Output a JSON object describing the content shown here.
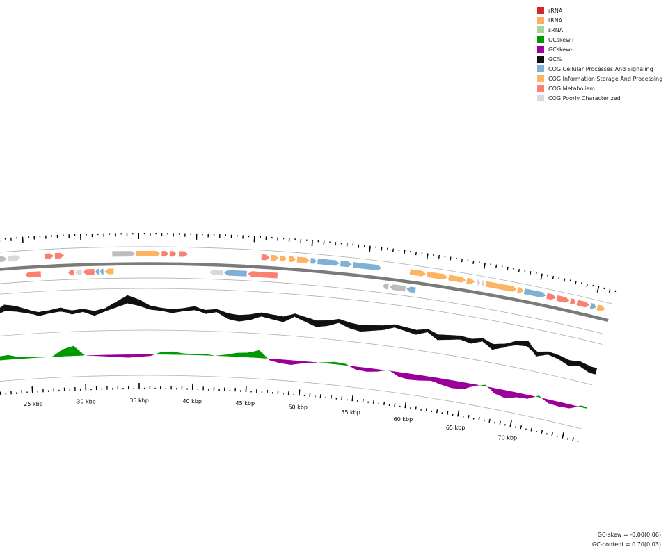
{
  "legend": [
    {
      "label": "rRNA",
      "color": "#d62728"
    },
    {
      "label": "tRNA",
      "color": "#fdae6b"
    },
    {
      "label": "sRNA",
      "color": "#a1d99b"
    },
    {
      "label": "GCskew+",
      "color": "#009900"
    },
    {
      "label": "GCskew-",
      "color": "#990099"
    },
    {
      "label": "GC%",
      "color": "#111111"
    },
    {
      "label": "COG Cellular Processes And Signaling",
      "color": "#80b1d3"
    },
    {
      "label": "COG Information Storage And Processing",
      "color": "#fdb462"
    },
    {
      "label": "COG Metabolism",
      "color": "#fb8072"
    },
    {
      "label": "COG Poorly Characterized",
      "color": "#d9d9d9"
    }
  ],
  "colors": {
    "backbone": "#7a7a7a",
    "track_line": "#b0b0b0",
    "tick": "#000000",
    "unknown": "#bdbdbd"
  },
  "scale": {
    "unit": "kbp",
    "labels": [
      "25 kbp",
      "30 kbp",
      "35 kbp",
      "40 kbp",
      "45 kbp",
      "50 kbp",
      "55 kbp",
      "60 kbp",
      "65 kbp",
      "70 kbp"
    ],
    "positions_kbp": [
      25,
      30,
      35,
      40,
      45,
      50,
      55,
      60,
      65,
      70
    ]
  },
  "chart_data": {
    "type": "circular-genome-map",
    "visible_range_kbp": [
      22,
      76
    ],
    "forward_genes": [
      {
        "start": 21.6,
        "end": 22.0,
        "cat": "COG Cellular Processes And Signaling"
      },
      {
        "start": 22.1,
        "end": 22.4,
        "cat": "COG Cellular Processes And Signaling"
      },
      {
        "start": 22.5,
        "end": 23.5,
        "cat": "unknown"
      },
      {
        "start": 23.6,
        "end": 24.7,
        "cat": "COG Poorly Characterized"
      },
      {
        "start": 26.8,
        "end": 27.6,
        "cat": "COG Metabolism"
      },
      {
        "start": 27.7,
        "end": 28.5,
        "cat": "COG Metabolism"
      },
      {
        "start": 32.7,
        "end": 34.7,
        "cat": "unknown"
      },
      {
        "start": 34.8,
        "end": 36.9,
        "cat": "COG Information Storage And Processing"
      },
      {
        "start": 37.0,
        "end": 37.6,
        "cat": "COG Metabolism"
      },
      {
        "start": 37.7,
        "end": 38.3,
        "cat": "COG Metabolism"
      },
      {
        "start": 38.5,
        "end": 39.3,
        "cat": "COG Metabolism"
      },
      {
        "start": 45.7,
        "end": 46.4,
        "cat": "COG Metabolism"
      },
      {
        "start": 46.5,
        "end": 47.2,
        "cat": "COG Information Storage And Processing"
      },
      {
        "start": 47.3,
        "end": 47.9,
        "cat": "COG Information Storage And Processing"
      },
      {
        "start": 48.1,
        "end": 48.7,
        "cat": "COG Information Storage And Processing"
      },
      {
        "start": 48.8,
        "end": 49.9,
        "cat": "COG Information Storage And Processing"
      },
      {
        "start": 50.0,
        "end": 50.5,
        "cat": "COG Cellular Processes And Signaling"
      },
      {
        "start": 50.6,
        "end": 52.5,
        "cat": "COG Cellular Processes And Signaling"
      },
      {
        "start": 52.6,
        "end": 53.6,
        "cat": "COG Cellular Processes And Signaling"
      },
      {
        "start": 53.7,
        "end": 56.2,
        "cat": "COG Cellular Processes And Signaling"
      },
      {
        "start": 58.7,
        "end": 60.1,
        "cat": "COG Information Storage And Processing"
      },
      {
        "start": 60.2,
        "end": 62.0,
        "cat": "COG Information Storage And Processing"
      },
      {
        "start": 62.1,
        "end": 63.6,
        "cat": "COG Information Storage And Processing"
      },
      {
        "start": 63.7,
        "end": 64.4,
        "cat": "COG Information Storage And Processing"
      },
      {
        "start": 64.6,
        "end": 64.9,
        "cat": "COG Poorly Characterized"
      },
      {
        "start": 65.0,
        "end": 65.3,
        "cat": "COG Poorly Characterized"
      },
      {
        "start": 65.4,
        "end": 68.1,
        "cat": "COG Information Storage And Processing"
      },
      {
        "start": 68.2,
        "end": 68.7,
        "cat": "COG Information Storage And Processing"
      },
      {
        "start": 68.8,
        "end": 70.7,
        "cat": "COG Cellular Processes And Signaling"
      },
      {
        "start": 70.8,
        "end": 71.6,
        "cat": "COG Metabolism"
      },
      {
        "start": 71.7,
        "end": 72.8,
        "cat": "COG Metabolism"
      },
      {
        "start": 72.9,
        "end": 73.4,
        "cat": "COG Metabolism"
      },
      {
        "start": 73.5,
        "end": 74.6,
        "cat": "COG Metabolism"
      },
      {
        "start": 74.7,
        "end": 75.2,
        "cat": "COG Cellular Processes And Signaling"
      },
      {
        "start": 75.3,
        "end": 76.0,
        "cat": "COG Information Storage And Processing"
      }
    ],
    "reverse_genes": [
      {
        "start": 25.0,
        "end": 26.4,
        "cat": "COG Metabolism"
      },
      {
        "start": 28.8,
        "end": 29.3,
        "cat": "COG Metabolism"
      },
      {
        "start": 29.4,
        "end": 30.0,
        "cat": "COG Poorly Characterized"
      },
      {
        "start": 30.1,
        "end": 31.1,
        "cat": "COG Metabolism"
      },
      {
        "start": 31.2,
        "end": 31.5,
        "cat": "COG Cellular Processes And Signaling"
      },
      {
        "start": 31.6,
        "end": 31.9,
        "cat": "COG Cellular Processes And Signaling"
      },
      {
        "start": 32.0,
        "end": 32.8,
        "cat": "COG Information Storage And Processing"
      },
      {
        "start": 41.2,
        "end": 42.4,
        "cat": "COG Poorly Characterized"
      },
      {
        "start": 42.5,
        "end": 44.5,
        "cat": "COG Cellular Processes And Signaling"
      },
      {
        "start": 44.6,
        "end": 47.2,
        "cat": "COG Metabolism"
      },
      {
        "start": 56.5,
        "end": 57.0,
        "cat": "unknown"
      },
      {
        "start": 57.1,
        "end": 58.5,
        "cat": "unknown"
      },
      {
        "start": 58.6,
        "end": 59.4,
        "cat": "COG Cellular Processes And Signaling"
      }
    ],
    "gc_content_kbp": [
      22,
      23,
      24,
      25,
      26,
      27,
      28,
      29,
      30,
      31,
      32,
      33,
      34,
      35,
      36,
      37,
      38,
      39,
      40,
      41,
      42,
      43,
      44,
      45,
      46,
      47,
      48,
      49,
      50,
      51,
      52,
      53,
      54,
      55,
      56,
      57,
      58,
      59,
      60,
      61,
      62,
      63,
      64,
      65,
      66,
      67,
      68,
      69,
      70,
      71,
      72,
      73,
      74,
      75,
      76
    ],
    "gc_content_values": [
      0.71,
      0.74,
      0.73,
      0.71,
      0.69,
      0.7,
      0.71,
      0.69,
      0.7,
      0.68,
      0.7,
      0.73,
      0.76,
      0.74,
      0.71,
      0.7,
      0.69,
      0.7,
      0.71,
      0.69,
      0.7,
      0.67,
      0.66,
      0.67,
      0.69,
      0.68,
      0.67,
      0.7,
      0.68,
      0.66,
      0.67,
      0.69,
      0.67,
      0.66,
      0.67,
      0.68,
      0.7,
      0.69,
      0.68,
      0.7,
      0.67,
      0.68,
      0.69,
      0.68,
      0.7,
      0.67,
      0.69,
      0.72,
      0.73,
      0.68,
      0.7,
      0.69,
      0.67,
      0.68,
      0.66
    ],
    "gc_skew_kbp": [
      22,
      23,
      24,
      25,
      26,
      27,
      28,
      29,
      30,
      31,
      32,
      33,
      34,
      35,
      36,
      37,
      38,
      39,
      40,
      41,
      42,
      43,
      44,
      45,
      46,
      47,
      48,
      49,
      50,
      51,
      52,
      53,
      54,
      55,
      56,
      57,
      58,
      59,
      60,
      61,
      62,
      63,
      64,
      65,
      66,
      67,
      68,
      69,
      70,
      71,
      72,
      73,
      74,
      75,
      76
    ],
    "gc_skew_values": [
      0.05,
      0.06,
      0.02,
      0.02,
      0.01,
      0.0,
      0.09,
      0.13,
      0.0,
      -0.01,
      -0.02,
      -0.03,
      -0.04,
      -0.03,
      -0.02,
      0.03,
      0.04,
      0.02,
      0.01,
      0.02,
      0.0,
      0.02,
      0.05,
      0.06,
      0.1,
      -0.02,
      -0.05,
      -0.06,
      -0.03,
      -0.01,
      0.01,
      0.03,
      0.02,
      -0.04,
      -0.05,
      -0.03,
      0.01,
      -0.06,
      -0.08,
      -0.07,
      -0.05,
      -0.08,
      -0.1,
      -0.09,
      -0.02,
      0.02,
      -0.07,
      -0.1,
      -0.06,
      -0.05,
      0.02,
      -0.05,
      -0.06,
      -0.05,
      0.02
    ]
  },
  "stats": {
    "gc_skew": "GC-skew = -0.00(0.06)",
    "gc_content": "GC-content = 0.70(0.03)"
  }
}
